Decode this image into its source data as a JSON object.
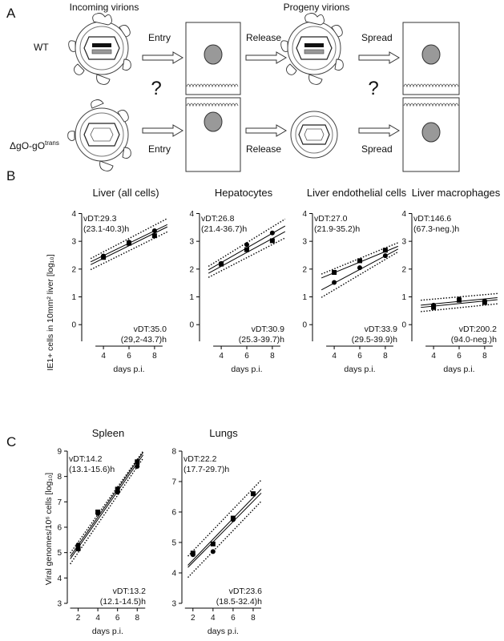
{
  "panelA": {
    "label": "A",
    "incoming_label": "Incoming virions",
    "progeny_label": "Progeny virions",
    "wt_label": "WT",
    "mut_label_main": "ΔgO-gO",
    "mut_label_sup": "trans",
    "entry_label": "Entry",
    "release_label": "Release",
    "spread_label": "Spread",
    "question": "?"
  },
  "panelB": {
    "label": "B",
    "ylabel": "IE1+ cells in 10mm² liver [log₁₀]"
  },
  "panelC": {
    "label": "C",
    "ylabel": "Viral genomes/10⁶ cells [log₁₀]"
  },
  "chart_data": [
    {
      "type": "scatter",
      "title": "Liver (all cells)",
      "xlabel": "days p.i.",
      "xticks": [
        4,
        6,
        8
      ],
      "yticks": [
        0,
        1,
        2,
        3,
        4
      ],
      "xlim": [
        2.3,
        9.2
      ],
      "ylim": [
        -0.6,
        4.1
      ],
      "annotation_top": [
        "vDT:29.3",
        "(23.1-40.3)h"
      ],
      "annotation_bottom": [
        "vDT:35.0",
        "(29,2-43.7)h"
      ],
      "series": [
        {
          "marker": "circle",
          "x": [
            4,
            6,
            8
          ],
          "y": [
            2.47,
            2.97,
            3.38
          ]
        },
        {
          "marker": "square",
          "x": [
            4,
            6,
            8
          ],
          "y": [
            2.42,
            2.93,
            3.2
          ]
        }
      ],
      "fits": [
        {
          "x": [
            3,
            9
          ],
          "y": [
            2.26,
            3.6
          ],
          "style": "solid"
        },
        {
          "x": [
            3,
            9
          ],
          "y": [
            2.16,
            3.52
          ],
          "style": "solid"
        },
        {
          "x": [
            3,
            9
          ],
          "y": [
            2.38,
            3.82
          ],
          "style": "dotted"
        },
        {
          "x": [
            3,
            9
          ],
          "y": [
            1.98,
            3.34
          ],
          "style": "dotted"
        }
      ]
    },
    {
      "type": "scatter",
      "title": "Hepatocytes",
      "xlabel": "days p.i.",
      "xticks": [
        4,
        6,
        8
      ],
      "yticks": [
        0,
        1,
        2,
        3,
        4
      ],
      "xlim": [
        2.3,
        9.2
      ],
      "ylim": [
        -0.6,
        4.1
      ],
      "annotation_top": [
        "vDT:26.8",
        "(21.4-36.7)h"
      ],
      "annotation_bottom": [
        "vDT:30.9",
        "(25.3-39.7)h"
      ],
      "series": [
        {
          "marker": "circle",
          "x": [
            4,
            6,
            8
          ],
          "y": [
            2.2,
            2.88,
            3.3
          ]
        },
        {
          "marker": "square",
          "x": [
            4,
            6,
            8
          ],
          "y": [
            2.18,
            2.7,
            3.02
          ]
        }
      ],
      "fits": [
        {
          "x": [
            3,
            9
          ],
          "y": [
            1.97,
            3.55
          ],
          "style": "solid"
        },
        {
          "x": [
            3,
            9
          ],
          "y": [
            1.85,
            3.35
          ],
          "style": "solid"
        },
        {
          "x": [
            3,
            9
          ],
          "y": [
            2.1,
            3.8
          ],
          "style": "dotted"
        },
        {
          "x": [
            3,
            9
          ],
          "y": [
            1.7,
            3.12
          ],
          "style": "dotted"
        }
      ]
    },
    {
      "type": "scatter",
      "title": "Liver endothelial cells",
      "xlabel": "days p.i.",
      "xticks": [
        4,
        6,
        8
      ],
      "yticks": [
        0,
        1,
        2,
        3,
        4
      ],
      "xlim": [
        2.3,
        9.2
      ],
      "ylim": [
        -0.6,
        4.1
      ],
      "annotation_top": [
        "vDT:27.0",
        "(21.9-35.2)h"
      ],
      "annotation_bottom": [
        "vDT:33.9",
        "(29.5-39.9)h"
      ],
      "series": [
        {
          "marker": "square",
          "x": [
            4,
            6,
            8
          ],
          "y": [
            1.88,
            2.3,
            2.68
          ]
        },
        {
          "marker": "circle",
          "x": [
            4,
            6,
            8
          ],
          "y": [
            1.52,
            2.05,
            2.48
          ]
        }
      ],
      "fits": [
        {
          "x": [
            3,
            9
          ],
          "y": [
            1.68,
            2.82
          ],
          "style": "solid"
        },
        {
          "x": [
            3,
            9
          ],
          "y": [
            1.25,
            2.72
          ],
          "style": "solid"
        },
        {
          "x": [
            3,
            9
          ],
          "y": [
            1.82,
            2.95
          ],
          "style": "dotted"
        },
        {
          "x": [
            3,
            9
          ],
          "y": [
            0.98,
            2.62
          ],
          "style": "dotted"
        }
      ]
    },
    {
      "type": "scatter",
      "title": "Liver macrophages",
      "xlabel": "days p.i.",
      "xticks": [
        4,
        6,
        8
      ],
      "yticks": [
        0,
        1,
        2,
        3,
        4
      ],
      "xlim": [
        2.3,
        9.2
      ],
      "ylim": [
        -0.6,
        4.1
      ],
      "annotation_top": [
        "vDT:146.6",
        "(67.3-neg.)h"
      ],
      "annotation_bottom": [
        "vDT:200.2",
        "(94.0-neg.)h"
      ],
      "series": [
        {
          "marker": "circle",
          "x": [
            4,
            6,
            8
          ],
          "y": [
            0.7,
            0.92,
            0.85
          ]
        },
        {
          "marker": "square",
          "x": [
            4,
            6,
            8
          ],
          "y": [
            0.62,
            0.88,
            0.8
          ]
        }
      ],
      "fits": [
        {
          "x": [
            3,
            9
          ],
          "y": [
            0.7,
            0.97
          ],
          "style": "solid"
        },
        {
          "x": [
            3,
            9
          ],
          "y": [
            0.62,
            0.9
          ],
          "style": "solid"
        },
        {
          "x": [
            3,
            9
          ],
          "y": [
            0.88,
            1.12
          ],
          "style": "dotted"
        },
        {
          "x": [
            3,
            9
          ],
          "y": [
            0.47,
            0.75
          ],
          "style": "dotted"
        }
      ]
    },
    {
      "type": "scatter",
      "title": "Spleen",
      "xlabel": "days p.i.",
      "xticks": [
        2,
        4,
        6,
        8
      ],
      "yticks": [
        3,
        4,
        5,
        6,
        7,
        8,
        9
      ],
      "xlim": [
        0.9,
        9.2
      ],
      "ylim": [
        3,
        9
      ],
      "annotation_top": [
        "vDT:14.2",
        "(13.1-15.6)h"
      ],
      "annotation_bottom": [
        "vDT:13.2",
        "(12.1-14.5)h"
      ],
      "series": [
        {
          "marker": "circle",
          "x": [
            2,
            4,
            6,
            8
          ],
          "y": [
            5.3,
            6.55,
            7.38,
            8.4
          ]
        },
        {
          "marker": "square",
          "x": [
            2,
            4,
            6,
            8
          ],
          "y": [
            5.15,
            6.6,
            7.5,
            8.58
          ]
        }
      ],
      "fits": [
        {
          "x": [
            1.2,
            8.6
          ],
          "y": [
            4.75,
            8.85
          ],
          "style": "solid"
        },
        {
          "x": [
            1.2,
            8.6
          ],
          "y": [
            4.85,
            8.95
          ],
          "style": "solid"
        },
        {
          "x": [
            1.2,
            8.6
          ],
          "y": [
            4.98,
            9.0
          ],
          "style": "dotted"
        },
        {
          "x": [
            1.2,
            8.6
          ],
          "y": [
            4.55,
            8.72
          ],
          "style": "dotted"
        }
      ]
    },
    {
      "type": "scatter",
      "title": "Lungs",
      "xlabel": "days p.i.",
      "xticks": [
        2,
        4,
        6,
        8
      ],
      "yticks": [
        3,
        4,
        5,
        6,
        7,
        8
      ],
      "xlim": [
        0.9,
        9.2
      ],
      "ylim": [
        3,
        8
      ],
      "annotation_top": [
        "vDT:22.2",
        "(17.7-29.7)h"
      ],
      "annotation_bottom": [
        "vDT:23.6",
        "(18.5-32.4)h"
      ],
      "series": [
        {
          "marker": "circle",
          "x": [
            2,
            4,
            6,
            8
          ],
          "y": [
            4.6,
            4.7,
            5.75,
            6.6
          ]
        },
        {
          "marker": "square",
          "x": [
            2,
            4,
            6,
            8
          ],
          "y": [
            4.65,
            4.95,
            5.8,
            6.6
          ]
        }
      ],
      "fits": [
        {
          "x": [
            1.5,
            8.8
          ],
          "y": [
            4.18,
            6.62
          ],
          "style": "solid"
        },
        {
          "x": [
            1.5,
            8.8
          ],
          "y": [
            4.25,
            6.75
          ],
          "style": "solid"
        },
        {
          "x": [
            1.5,
            8.8
          ],
          "y": [
            4.55,
            7.05
          ],
          "style": "dotted"
        },
        {
          "x": [
            1.5,
            8.8
          ],
          "y": [
            3.85,
            6.35
          ],
          "style": "dotted"
        }
      ]
    }
  ]
}
